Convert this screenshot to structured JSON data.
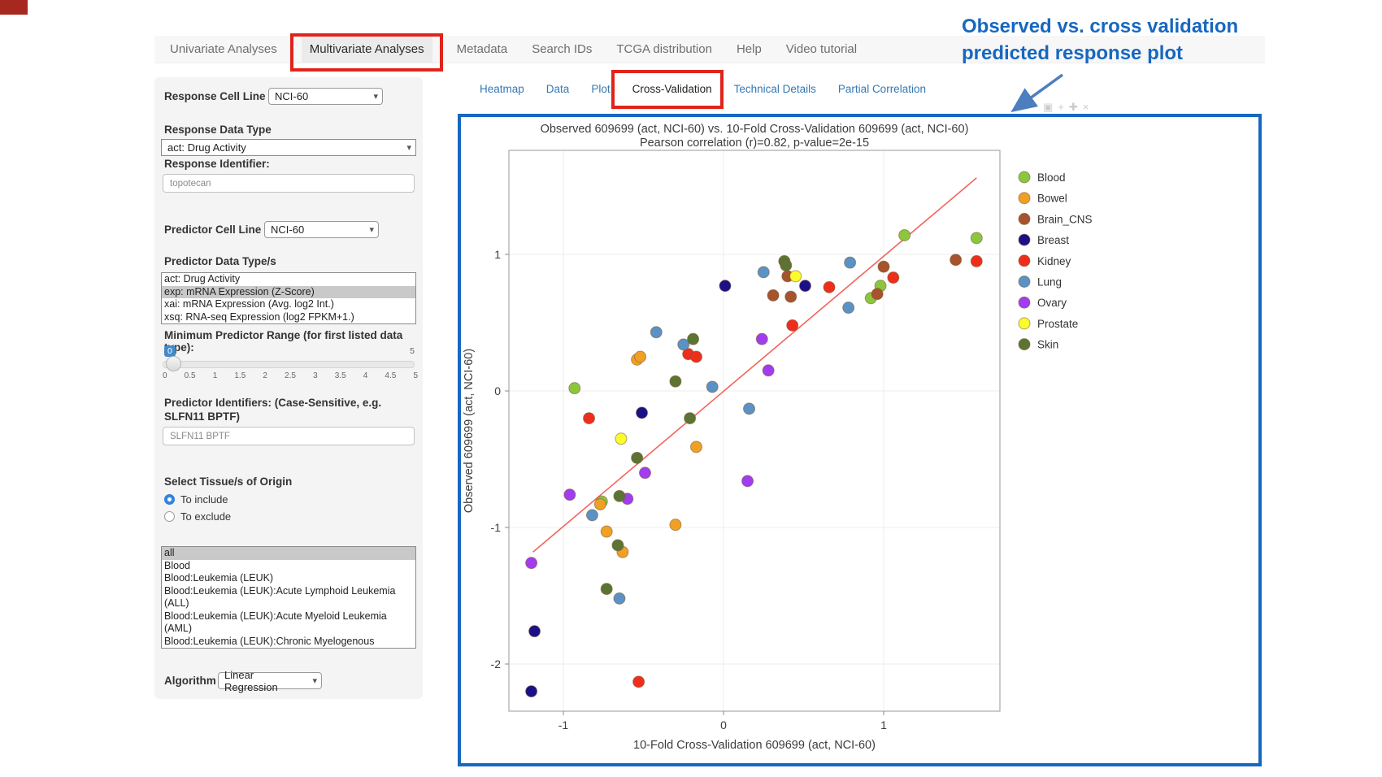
{
  "nav": {
    "tabs": [
      {
        "label": "Univariate Analyses",
        "active": false
      },
      {
        "label": "Multivariate Analyses",
        "active": true
      },
      {
        "label": "Metadata",
        "active": false
      },
      {
        "label": "Search IDs",
        "active": false
      },
      {
        "label": "TCGA distribution",
        "active": false
      },
      {
        "label": "Help",
        "active": false
      },
      {
        "label": "Video tutorial",
        "active": false
      }
    ]
  },
  "subtabs": [
    {
      "label": "Heatmap",
      "active": false
    },
    {
      "label": "Data",
      "active": false
    },
    {
      "label": "Plot",
      "active": false
    },
    {
      "label": "Cross-Validation",
      "active": true
    },
    {
      "label": "Technical Details",
      "active": false
    },
    {
      "label": "Partial Correlation",
      "active": false
    }
  ],
  "sidebar": {
    "response_cell_line_set_label": "Response Cell Line Set",
    "response_cell_line_set_value": "NCI-60",
    "response_data_type_label": "Response Data Type",
    "response_data_type_value": "act: Drug Activity",
    "response_identifier_label": "Response Identifier:",
    "response_identifier_value": "topotecan",
    "predictor_cell_line_set_label": "Predictor Cell Line Set",
    "predictor_cell_line_set_value": "NCI-60",
    "predictor_data_types_label": "Predictor Data Type/s",
    "predictor_data_types_options": [
      {
        "label": "act: Drug Activity",
        "selected": false
      },
      {
        "label": "exp: mRNA Expression (Z-Score)",
        "selected": true
      },
      {
        "label": "xai: mRNA Expression (Avg. log2 Int.)",
        "selected": false
      },
      {
        "label": "xsq: RNA-seq Expression (log2 FPKM+1.)",
        "selected": false
      }
    ],
    "min_predictor_range_label": "Minimum Predictor Range (for first listed data type):",
    "slider": {
      "value": "0",
      "max_label": "5",
      "tick_labels": [
        "0",
        "0.5",
        "1",
        "1.5",
        "2",
        "2.5",
        "3",
        "3.5",
        "4",
        "4.5",
        "5"
      ]
    },
    "predictor_identifiers_label": "Predictor Identifiers: (Case-Sensitive, e.g. SLFN11 BPTF)",
    "predictor_identifiers_value": "SLFN11 BPTF",
    "tissue_origin_label": "Select Tissue/s of Origin",
    "radio_include_label": "To include",
    "radio_exclude_label": "To exclude",
    "radio_selected": "include",
    "tissue_options": [
      {
        "label": "all",
        "selected": true
      },
      {
        "label": "Blood",
        "selected": false
      },
      {
        "label": "Blood:Leukemia (LEUK)",
        "selected": false
      },
      {
        "label": "Blood:Leukemia (LEUK):Acute Lymphoid Leukemia (ALL)",
        "selected": false
      },
      {
        "label": "Blood:Leukemia (LEUK):Acute Myeloid Leukemia (AML)",
        "selected": false
      },
      {
        "label": "Blood:Leukemia (LEUK):Chronic Myelogenous Leukemia (CML)",
        "selected": false
      }
    ],
    "algorithm_label": "Algorithm",
    "algorithm_value": "Linear Regression"
  },
  "annotation": {
    "line1": "Observed vs. cross validation",
    "line2": "predicted response plot"
  },
  "modebar_icons": [
    "camera-icon",
    "zoom-icon",
    "pan-icon",
    "close-icon"
  ],
  "chart_data": {
    "type": "scatter",
    "title": "Observed 609699 (act, NCI-60) vs. 10-Fold Cross-Validation 609699 (act, NCI-60)",
    "subtitle": "Pearson correlation (r)=0.82, p-value=2e-15",
    "xlabel": "10-Fold Cross-Validation 609699 (act, NCI-60)",
    "ylabel": "Observed 609699 (act, NCI-60)",
    "xlim": [
      -1.34,
      1.73
    ],
    "ylim": [
      -2.35,
      1.76
    ],
    "xticks": [
      -1,
      0,
      1
    ],
    "yticks": [
      1,
      0,
      -1,
      -2
    ],
    "grid": true,
    "legend_position": "right",
    "regression_line": {
      "x1": -1.19,
      "y1": -1.18,
      "x2": 1.58,
      "y2": 1.56,
      "color": "#f4645c"
    },
    "point_stroke": "#7a5a32",
    "series": [
      {
        "name": "Blood",
        "color": "#8cc63e",
        "points": [
          [
            -0.93,
            0.02
          ],
          [
            -0.76,
            -0.81
          ],
          [
            0.92,
            0.68
          ],
          [
            0.98,
            0.77
          ],
          [
            1.13,
            1.14
          ],
          [
            1.58,
            1.12
          ]
        ]
      },
      {
        "name": "Bowel",
        "color": "#f0a024",
        "points": [
          [
            -0.54,
            0.23
          ],
          [
            -0.52,
            0.25
          ],
          [
            -0.17,
            -0.41
          ],
          [
            -0.77,
            -0.83
          ],
          [
            -0.3,
            -0.98
          ],
          [
            -0.73,
            -1.03
          ],
          [
            -0.63,
            -1.18
          ]
        ]
      },
      {
        "name": "Brain_CNS",
        "color": "#a5542e",
        "points": [
          [
            0.4,
            0.84
          ],
          [
            0.31,
            0.7
          ],
          [
            0.42,
            0.69
          ],
          [
            0.96,
            0.71
          ],
          [
            1.0,
            0.91
          ],
          [
            1.45,
            0.96
          ]
        ]
      },
      {
        "name": "Breast",
        "color": "#1c1089",
        "points": [
          [
            0.01,
            0.77
          ],
          [
            0.51,
            0.77
          ],
          [
            -0.51,
            -0.16
          ],
          [
            -1.18,
            -1.76
          ],
          [
            -1.2,
            -2.2
          ]
        ]
      },
      {
        "name": "Kidney",
        "color": "#ee2e1c",
        "points": [
          [
            -0.22,
            0.27
          ],
          [
            -0.17,
            0.25
          ],
          [
            -0.84,
            -0.2
          ],
          [
            0.43,
            0.48
          ],
          [
            0.66,
            0.76
          ],
          [
            1.06,
            0.83
          ],
          [
            1.58,
            0.95
          ],
          [
            -0.53,
            -2.13
          ]
        ]
      },
      {
        "name": "Lung",
        "color": "#5b92c6",
        "points": [
          [
            -0.42,
            0.43
          ],
          [
            -0.25,
            0.34
          ],
          [
            -0.07,
            0.03
          ],
          [
            0.25,
            0.87
          ],
          [
            0.79,
            0.94
          ],
          [
            0.78,
            0.61
          ],
          [
            0.16,
            -0.13
          ],
          [
            -0.82,
            -0.91
          ],
          [
            -0.65,
            -1.52
          ]
        ]
      },
      {
        "name": "Ovary",
        "color": "#a23cf0",
        "points": [
          [
            -0.49,
            -0.6
          ],
          [
            -0.96,
            -0.76
          ],
          [
            -0.6,
            -0.79
          ],
          [
            -1.2,
            -1.26
          ],
          [
            0.24,
            0.38
          ],
          [
            0.28,
            0.15
          ],
          [
            0.15,
            -0.66
          ]
        ]
      },
      {
        "name": "Prostate",
        "color": "#fcfc2d",
        "points": [
          [
            -0.64,
            -0.35
          ],
          [
            0.45,
            0.84
          ]
        ]
      },
      {
        "name": "Skin",
        "color": "#5c7433",
        "points": [
          [
            -0.19,
            0.38
          ],
          [
            -0.3,
            0.07
          ],
          [
            -0.21,
            -0.2
          ],
          [
            -0.54,
            -0.49
          ],
          [
            -0.65,
            -0.77
          ],
          [
            -0.66,
            -1.13
          ],
          [
            -0.73,
            -1.45
          ],
          [
            0.38,
            0.95
          ],
          [
            0.39,
            0.92
          ]
        ]
      }
    ]
  }
}
